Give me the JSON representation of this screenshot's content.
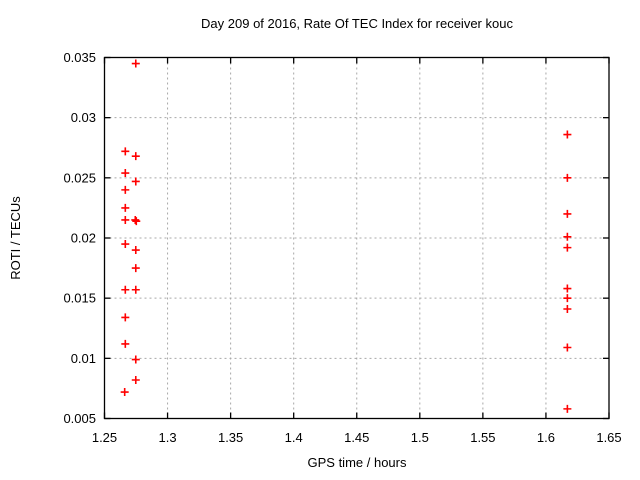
{
  "window": {
    "background": "#ffffff"
  },
  "chart_data": {
    "type": "scatter",
    "title": "Day 209 of 2016, Rate Of TEC Index for receiver kouc",
    "xlabel": "GPS time / hours",
    "ylabel": "ROTI / TECUs",
    "xlim": [
      1.25,
      1.65
    ],
    "ylim": [
      0.005,
      0.035
    ],
    "xticks": {
      "values": [
        1.25,
        1.3,
        1.35,
        1.4,
        1.45,
        1.5,
        1.55,
        1.6,
        1.65
      ],
      "labels": [
        "1.25",
        "1.3",
        "1.35",
        "1.4",
        "1.45",
        "1.5",
        "1.55",
        "1.6",
        "1.65"
      ]
    },
    "yticks": {
      "values": [
        0.005,
        0.01,
        0.015,
        0.02,
        0.025,
        0.03,
        0.035
      ],
      "labels": [
        "0.005",
        "0.01",
        "0.015",
        "0.02",
        "0.025",
        "0.03",
        "0.035"
      ]
    },
    "grid": "dashed",
    "legend": "none",
    "series": [
      {
        "name": "ROTI",
        "marker": "plus",
        "color": "#ff0000",
        "points": [
          [
            1.2748,
            0.0345
          ],
          [
            1.2665,
            0.0272
          ],
          [
            1.2748,
            0.0268
          ],
          [
            1.2665,
            0.0254
          ],
          [
            1.2748,
            0.0247
          ],
          [
            1.2665,
            0.024
          ],
          [
            1.2665,
            0.0225
          ],
          [
            1.2665,
            0.0215
          ],
          [
            1.2744,
            0.0215
          ],
          [
            1.2752,
            0.0214
          ],
          [
            1.2665,
            0.0195
          ],
          [
            1.2748,
            0.019
          ],
          [
            1.2748,
            0.0175
          ],
          [
            1.2665,
            0.0157
          ],
          [
            1.2748,
            0.0157
          ],
          [
            1.2665,
            0.0134
          ],
          [
            1.2665,
            0.0112
          ],
          [
            1.2748,
            0.0099
          ],
          [
            1.2748,
            0.0082
          ],
          [
            1.266,
            0.0072
          ],
          [
            1.617,
            0.0286
          ],
          [
            1.617,
            0.025
          ],
          [
            1.617,
            0.022
          ],
          [
            1.617,
            0.0201
          ],
          [
            1.617,
            0.0192
          ],
          [
            1.617,
            0.0158
          ],
          [
            1.617,
            0.015
          ],
          [
            1.617,
            0.0141
          ],
          [
            1.617,
            0.0109
          ],
          [
            1.617,
            0.0058
          ]
        ]
      }
    ]
  },
  "colors": {
    "background": "#ffffff",
    "frame": "#000000",
    "grid": "#a8a8a8",
    "marker": "#ff0000",
    "text": "#000000"
  }
}
